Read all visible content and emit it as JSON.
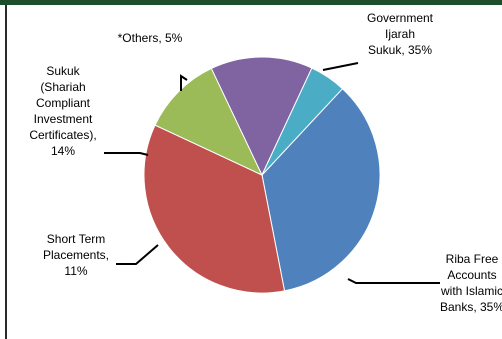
{
  "frame": {
    "top_rule_color": "#1e4d2b",
    "left_rule_color": "#2b2b2b"
  },
  "chart_data": {
    "type": "pie",
    "title": "",
    "slices": [
      {
        "label_lines": [
          "Government",
          "Ijarah",
          "Sukuk, 35%"
        ],
        "value": 35,
        "color": "#4f81bd"
      },
      {
        "label_lines": [
          "Riba Free",
          "Accounts",
          "with Islamic",
          "Banks, 35%"
        ],
        "value": 35,
        "color": "#c0504d"
      },
      {
        "label_lines": [
          "Short Term",
          "Placements,",
          "11%"
        ],
        "value": 11,
        "color": "#9bbb59"
      },
      {
        "label_lines": [
          "Sukuk",
          "(Shariah",
          "Compliant",
          "Investment",
          "Certificates),",
          "14%"
        ],
        "value": 14,
        "color": "#8064a2"
      },
      {
        "label_lines": [
          "*Others, 5%"
        ],
        "value": 5,
        "color": "#4bacc6"
      }
    ]
  }
}
